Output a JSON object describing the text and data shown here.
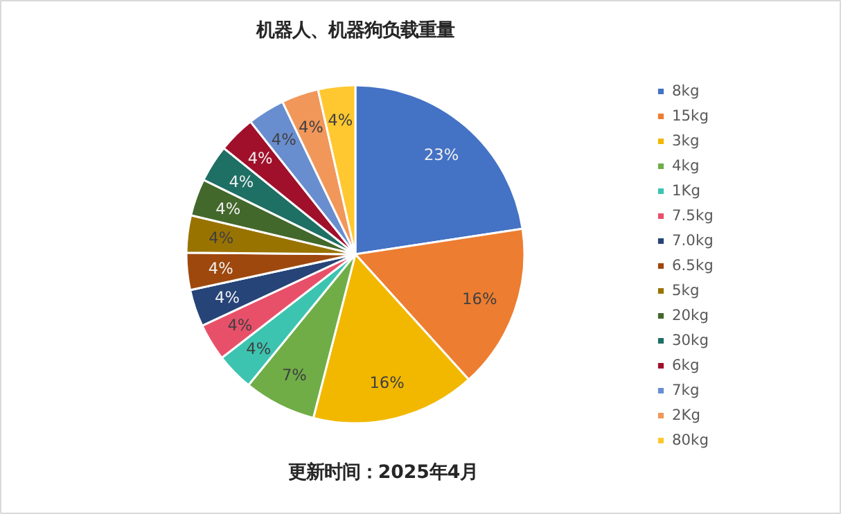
{
  "chart_data": {
    "type": "pie",
    "title": "机器人、机器狗负载重量",
    "annotations": [
      "更新时间：2025年4月"
    ],
    "categories": [
      "8kg",
      "15kg",
      "3kg",
      "4kg",
      "1Kg",
      "7.5kg",
      "7.0kg",
      "6.5kg",
      "5kg",
      "20kg",
      "30kg",
      "6kg",
      "7kg",
      "2Kg",
      "80kg"
    ],
    "values": [
      22.6,
      15.7,
      15.7,
      6.9,
      3.6,
      3.55,
      3.55,
      3.55,
      3.55,
      3.55,
      3.55,
      3.55,
      3.55,
      3.55,
      3.55
    ],
    "value_labels": [
      "23%",
      "16%",
      "16%",
      "7%",
      "4%",
      "4%",
      "4%",
      "4%",
      "4%",
      "4%",
      "4%",
      "4%",
      "4%",
      "4%",
      "4%"
    ],
    "colors": [
      "#4472c4",
      "#ed7d31",
      "#f2b800",
      "#70ad47",
      "#3cc4b0",
      "#e8506a",
      "#264478",
      "#9e480e",
      "#997300",
      "#43682b",
      "#1e6f64",
      "#a0102a",
      "#698ed0",
      "#f1975a",
      "#ffc830"
    ],
    "legend": "right"
  }
}
